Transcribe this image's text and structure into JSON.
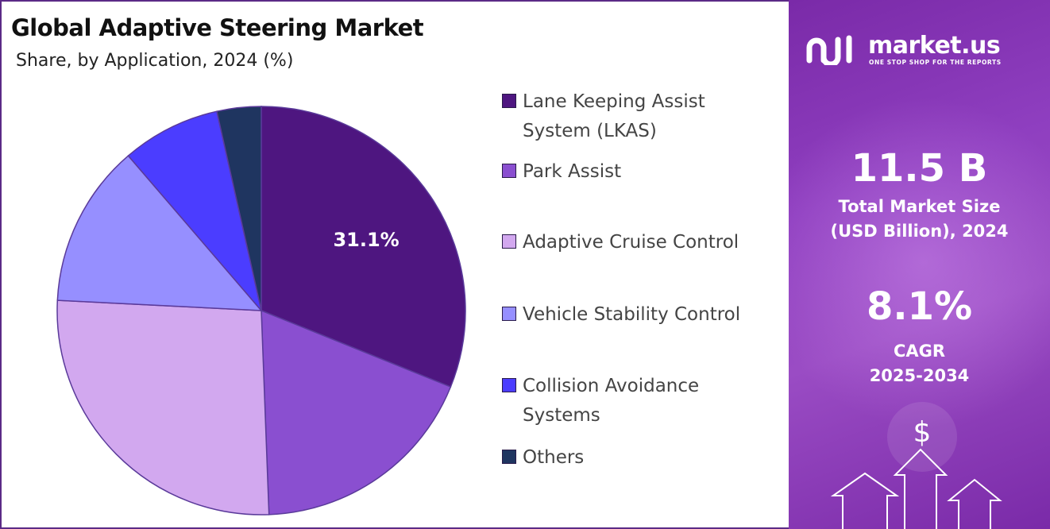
{
  "header": {
    "title": "Global Adaptive Steering Market",
    "subtitle": "Share, by Application, 2024 (%)"
  },
  "chart_data": {
    "type": "pie",
    "start_angle_deg": 0,
    "direction": "clockwise",
    "slices": [
      {
        "name": "Lane Keeping Assist System (LKAS)",
        "value": 31.1,
        "color": "#4e1680",
        "label": "31.1%"
      },
      {
        "name": "Park Assist",
        "value": 18.3,
        "color": "#8a4fd0",
        "label": ""
      },
      {
        "name": "Adaptive Cruise Control",
        "value": 26.4,
        "color": "#d2a8ef",
        "label": ""
      },
      {
        "name": "Vehicle Stability Control",
        "value": 12.9,
        "color": "#968fff",
        "label": ""
      },
      {
        "name": "Collision Avoidance Systems",
        "value": 7.8,
        "color": "#4b3dff",
        "label": ""
      },
      {
        "name": "Others",
        "value": 3.5,
        "color": "#1f3560",
        "label": ""
      }
    ]
  },
  "legend": {
    "items": [
      {
        "label": "Lane Keeping Assist System (LKAS)",
        "color": "#4e1680"
      },
      {
        "label": "Park Assist",
        "color": "#8a4fd0"
      },
      {
        "label": "Adaptive Cruise Control",
        "color": "#d2a8ef"
      },
      {
        "label": "Vehicle Stability Control",
        "color": "#968fff"
      },
      {
        "label": "Collision Avoidance Systems",
        "color": "#4b3dff"
      },
      {
        "label": "Others",
        "color": "#1f3560"
      }
    ]
  },
  "info": {
    "logo_text": "market.us",
    "logo_tagline": "ONE STOP SHOP FOR THE REPORTS",
    "market_size_value": "11.5 B",
    "market_size_label_1": "Total Market Size",
    "market_size_label_2": "(USD Billion), 2024",
    "cagr_value": "8.1%",
    "cagr_label_1": "CAGR",
    "cagr_label_2": "2025-2034",
    "background_color": "#8a35b8"
  }
}
